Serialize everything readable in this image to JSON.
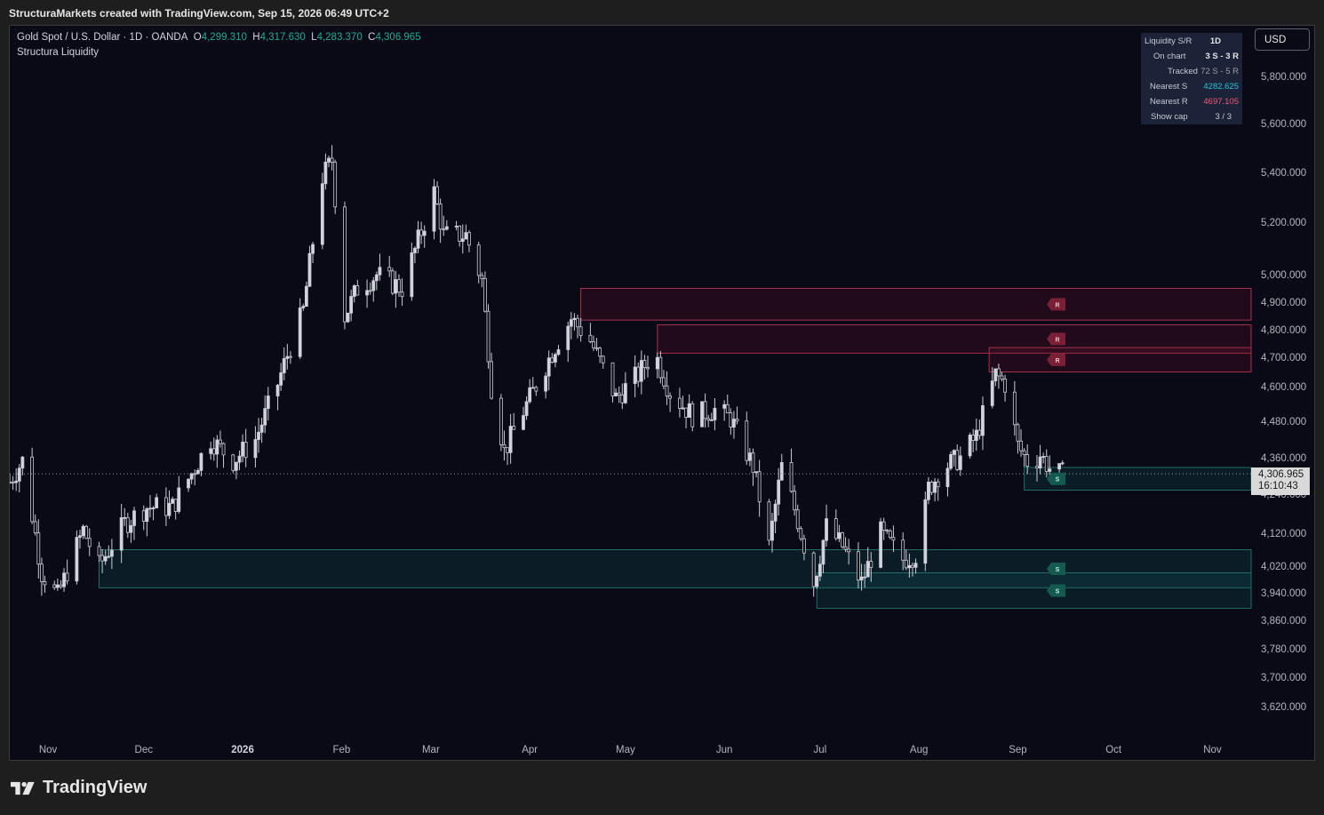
{
  "header": {
    "attribution": "StructuraMarkets created with TradingView.com, Sep 15, 2026 06:49 UTC+2"
  },
  "legend": {
    "symbol": "Gold Spot / U.S. Dollar · 1D · OANDA",
    "open_label": "O",
    "open": "4,299.310",
    "high_label": "H",
    "high": "4,317.630",
    "low_label": "L",
    "low": "4,283.370",
    "close_label": "C",
    "close": "4,306.965",
    "indicator": "Structura Liquidity"
  },
  "currency_button": "USD",
  "info_table": {
    "title": "Liquidity S/R",
    "timeframe": "1D",
    "rows": [
      {
        "k": "On chart",
        "v": "3 S - 3 R"
      },
      {
        "k": "Tracked",
        "v": "72 S - 5 R"
      },
      {
        "k": "Nearest S",
        "v": "4282.625"
      },
      {
        "k": "Nearest R",
        "v": "4697.105"
      },
      {
        "k": "Show cap",
        "v": "3 / 3"
      }
    ]
  },
  "price_label": {
    "price": "4,306.965",
    "countdown": "16:10:43"
  },
  "zone_labels": {
    "resistance": "R",
    "support": "S"
  },
  "footer": {
    "brand": "TradingView"
  },
  "colors": {
    "background": "#0a0a17",
    "resistance": "#a8304a",
    "support": "#1f6d63",
    "up": "#d1d4dc",
    "down": "#d1d4dc",
    "nearest_s": "#26c6da",
    "nearest_r": "#ef5a70"
  },
  "chart_data": {
    "type": "candlestick",
    "y_ticks": [
      {
        "value": 5800,
        "label": "5,800.000"
      },
      {
        "value": 5600,
        "label": "5,600.000"
      },
      {
        "value": 5400,
        "label": "5,400.000"
      },
      {
        "value": 5200,
        "label": "5,200.000"
      },
      {
        "value": 5000,
        "label": "5,000.000"
      },
      {
        "value": 4900,
        "label": "4,900.000"
      },
      {
        "value": 4800,
        "label": "4,800.000"
      },
      {
        "value": 4700,
        "label": "4,700.000"
      },
      {
        "value": 4600,
        "label": "4,600.000"
      },
      {
        "value": 4480,
        "label": "4,480.000"
      },
      {
        "value": 4360,
        "label": "4,360.000"
      },
      {
        "value": 4240,
        "label": "4,240.000"
      },
      {
        "value": 4120,
        "label": "4,120.000"
      },
      {
        "value": 4020,
        "label": "4,020.000"
      },
      {
        "value": 3940,
        "label": "3,940.000"
      },
      {
        "value": 3860,
        "label": "3,860.000"
      },
      {
        "value": 3780,
        "label": "3,780.000"
      },
      {
        "value": 3700,
        "label": "3,700.000"
      },
      {
        "value": 3620,
        "label": "3,620.000"
      }
    ],
    "x_ticks": [
      {
        "date": "2025-11-01",
        "label": "Nov",
        "bold": false
      },
      {
        "date": "2025-12-01",
        "label": "Dec",
        "bold": false
      },
      {
        "date": "2026-01-01",
        "label": "2026",
        "bold": true
      },
      {
        "date": "2026-02-01",
        "label": "Feb",
        "bold": false
      },
      {
        "date": "2026-03-01",
        "label": "Mar",
        "bold": false
      },
      {
        "date": "2026-04-01",
        "label": "Apr",
        "bold": false
      },
      {
        "date": "2026-05-01",
        "label": "May",
        "bold": false
      },
      {
        "date": "2026-06-01",
        "label": "Jun",
        "bold": false
      },
      {
        "date": "2026-07-01",
        "label": "Jul",
        "bold": false
      },
      {
        "date": "2026-08-01",
        "label": "Aug",
        "bold": false
      },
      {
        "date": "2026-09-01",
        "label": "Sep",
        "bold": false
      },
      {
        "date": "2026-10-01",
        "label": "Oct",
        "bold": false
      },
      {
        "date": "2026-11-01",
        "label": "Nov",
        "bold": false
      }
    ],
    "x_range": [
      "2025-10-20",
      "2026-11-15"
    ],
    "last_price": 4306.965,
    "zones": [
      {
        "kind": "resistance",
        "start": "2026-04-17",
        "top": 4950,
        "bottom": 4835
      },
      {
        "kind": "resistance",
        "start": "2026-05-11",
        "top": 4818,
        "bottom": 4715
      },
      {
        "kind": "resistance",
        "start": "2026-08-23",
        "top": 4735,
        "bottom": 4650
      },
      {
        "kind": "support",
        "start": "2026-09-03",
        "top": 4328,
        "bottom": 4253
      },
      {
        "kind": "support",
        "start": "2025-11-17",
        "top": 4070,
        "bottom": 3955
      },
      {
        "kind": "support",
        "start": "2026-06-30",
        "top": 4000,
        "bottom": 3895
      }
    ],
    "anchors": [
      [
        "2025-10-20",
        4280
      ],
      [
        "2025-10-24",
        4350
      ],
      [
        "2025-10-30",
        4000
      ],
      [
        "2025-11-04",
        3930
      ],
      [
        "2025-11-12",
        4130
      ],
      [
        "2025-11-17",
        4020
      ],
      [
        "2025-11-25",
        4150
      ],
      [
        "2025-12-02",
        4200
      ],
      [
        "2025-12-10",
        4200
      ],
      [
        "2025-12-15",
        4290
      ],
      [
        "2025-12-22",
        4420
      ],
      [
        "2025-12-29",
        4350
      ],
      [
        "2026-01-05",
        4420
      ],
      [
        "2026-01-12",
        4610
      ],
      [
        "2026-01-20",
        4870
      ],
      [
        "2026-01-26",
        5380
      ],
      [
        "2026-01-29",
        5450
      ],
      [
        "2026-02-02",
        4850
      ],
      [
        "2026-02-06",
        4950
      ],
      [
        "2026-02-12",
        5000
      ],
      [
        "2026-02-20",
        4950
      ],
      [
        "2026-02-27",
        5200
      ],
      [
        "2026-03-02",
        5320
      ],
      [
        "2026-03-05",
        5150
      ],
      [
        "2026-03-12",
        5150
      ],
      [
        "2026-03-17",
        4980
      ],
      [
        "2026-03-20",
        4600
      ],
      [
        "2026-03-24",
        4380
      ],
      [
        "2026-04-01",
        4560
      ],
      [
        "2026-04-09",
        4740
      ],
      [
        "2026-04-14",
        4840
      ],
      [
        "2026-04-20",
        4760
      ],
      [
        "2026-04-28",
        4560
      ],
      [
        "2026-05-05",
        4640
      ],
      [
        "2026-05-10",
        4720
      ],
      [
        "2026-05-15",
        4580
      ],
      [
        "2026-05-22",
        4500
      ],
      [
        "2026-05-29",
        4520
      ],
      [
        "2026-06-03",
        4490
      ],
      [
        "2026-06-10",
        4330
      ],
      [
        "2026-06-15",
        4080
      ],
      [
        "2026-06-19",
        4330
      ],
      [
        "2026-06-24",
        4160
      ],
      [
        "2026-06-29",
        3970
      ],
      [
        "2026-07-03",
        4140
      ],
      [
        "2026-07-08",
        4080
      ],
      [
        "2026-07-14",
        3970
      ],
      [
        "2026-07-20",
        4120
      ],
      [
        "2026-07-27",
        4040
      ],
      [
        "2026-08-01",
        4060
      ],
      [
        "2026-08-04",
        4260
      ],
      [
        "2026-08-09",
        4330
      ],
      [
        "2026-08-14",
        4360
      ],
      [
        "2026-08-19",
        4430
      ],
      [
        "2026-08-25",
        4640
      ],
      [
        "2026-08-28",
        4610
      ],
      [
        "2026-09-01",
        4400
      ],
      [
        "2026-09-05",
        4330
      ],
      [
        "2026-09-08",
        4370
      ],
      [
        "2026-09-12",
        4310
      ],
      [
        "2026-09-15",
        4306.965
      ]
    ]
  }
}
